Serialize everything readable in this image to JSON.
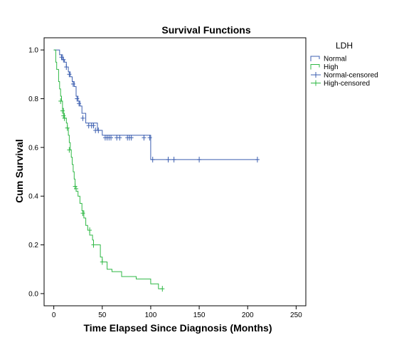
{
  "chart_data": {
    "type": "line",
    "title": "Survival Functions",
    "xlabel": "Time Elapsed Since Diagnosis (Months)",
    "ylabel": "Cum Survival",
    "xlim": [
      -10,
      260
    ],
    "ylim": [
      -0.05,
      1.05
    ],
    "xticks": [
      0,
      50,
      100,
      150,
      200,
      250
    ],
    "yticks": [
      0.0,
      0.2,
      0.4,
      0.6,
      0.8,
      1.0
    ],
    "xtick_labels": [
      "0",
      "50",
      "100",
      "150",
      "200",
      "250"
    ],
    "ytick_labels": [
      "0.0",
      "0.2",
      "0.4",
      "0.6",
      "0.8",
      "1.0"
    ],
    "grid": false,
    "legend": {
      "title": "LDH",
      "position": "top-right",
      "entries": [
        "Normal",
        "High",
        "Normal-censored",
        "High-censored"
      ]
    },
    "series": [
      {
        "name": "Normal",
        "color": "#3c5fb0",
        "step_points": [
          [
            0,
            1.0
          ],
          [
            6,
            0.98
          ],
          [
            9,
            0.96
          ],
          [
            11,
            0.95
          ],
          [
            13,
            0.93
          ],
          [
            15,
            0.91
          ],
          [
            17,
            0.89
          ],
          [
            19,
            0.87
          ],
          [
            21,
            0.85
          ],
          [
            23,
            0.81
          ],
          [
            25,
            0.79
          ],
          [
            27,
            0.77
          ],
          [
            29,
            0.74
          ],
          [
            33,
            0.7
          ],
          [
            45,
            0.67
          ],
          [
            50,
            0.65
          ],
          [
            100,
            0.55
          ],
          [
            210,
            0.55
          ]
        ],
        "censored": [
          [
            8,
            0.97
          ],
          [
            10,
            0.96
          ],
          [
            13,
            0.93
          ],
          [
            16,
            0.9
          ],
          [
            20,
            0.86
          ],
          [
            24,
            0.8
          ],
          [
            26,
            0.78
          ],
          [
            30,
            0.72
          ],
          [
            36,
            0.69
          ],
          [
            39,
            0.69
          ],
          [
            41,
            0.69
          ],
          [
            43,
            0.67
          ],
          [
            46,
            0.67
          ],
          [
            53,
            0.64
          ],
          [
            55,
            0.64
          ],
          [
            57,
            0.64
          ],
          [
            59,
            0.64
          ],
          [
            65,
            0.64
          ],
          [
            68,
            0.64
          ],
          [
            76,
            0.64
          ],
          [
            78,
            0.64
          ],
          [
            80,
            0.64
          ],
          [
            93,
            0.64
          ],
          [
            99,
            0.64
          ],
          [
            102,
            0.55
          ],
          [
            118,
            0.55
          ],
          [
            124,
            0.55
          ],
          [
            150,
            0.55
          ],
          [
            210,
            0.55
          ]
        ]
      },
      {
        "name": "High",
        "color": "#2fb845",
        "step_points": [
          [
            0,
            1.0
          ],
          [
            2,
            0.95
          ],
          [
            3,
            0.92
          ],
          [
            5,
            0.87
          ],
          [
            6,
            0.84
          ],
          [
            7,
            0.81
          ],
          [
            8,
            0.79
          ],
          [
            9,
            0.76
          ],
          [
            10,
            0.74
          ],
          [
            11,
            0.72
          ],
          [
            13,
            0.7
          ],
          [
            14,
            0.68
          ],
          [
            15,
            0.65
          ],
          [
            16,
            0.62
          ],
          [
            17,
            0.59
          ],
          [
            18,
            0.56
          ],
          [
            19,
            0.53
          ],
          [
            20,
            0.5
          ],
          [
            21,
            0.47
          ],
          [
            22,
            0.44
          ],
          [
            23,
            0.42
          ],
          [
            25,
            0.4
          ],
          [
            27,
            0.37
          ],
          [
            29,
            0.34
          ],
          [
            31,
            0.31
          ],
          [
            33,
            0.28
          ],
          [
            35,
            0.26
          ],
          [
            37,
            0.24
          ],
          [
            40,
            0.22
          ],
          [
            41,
            0.2
          ],
          [
            48,
            0.15
          ],
          [
            50,
            0.13
          ],
          [
            55,
            0.1
          ],
          [
            60,
            0.09
          ],
          [
            70,
            0.07
          ],
          [
            85,
            0.06
          ],
          [
            100,
            0.04
          ],
          [
            108,
            0.02
          ],
          [
            112,
            0.02
          ]
        ],
        "censored": [
          [
            7,
            0.79
          ],
          [
            9,
            0.75
          ],
          [
            10,
            0.73
          ],
          [
            11,
            0.72
          ],
          [
            14,
            0.68
          ],
          [
            16,
            0.59
          ],
          [
            22,
            0.44
          ],
          [
            23,
            0.43
          ],
          [
            30,
            0.33
          ],
          [
            37,
            0.26
          ],
          [
            41,
            0.2
          ],
          [
            50,
            0.13
          ],
          [
            112,
            0.02
          ]
        ]
      }
    ]
  }
}
